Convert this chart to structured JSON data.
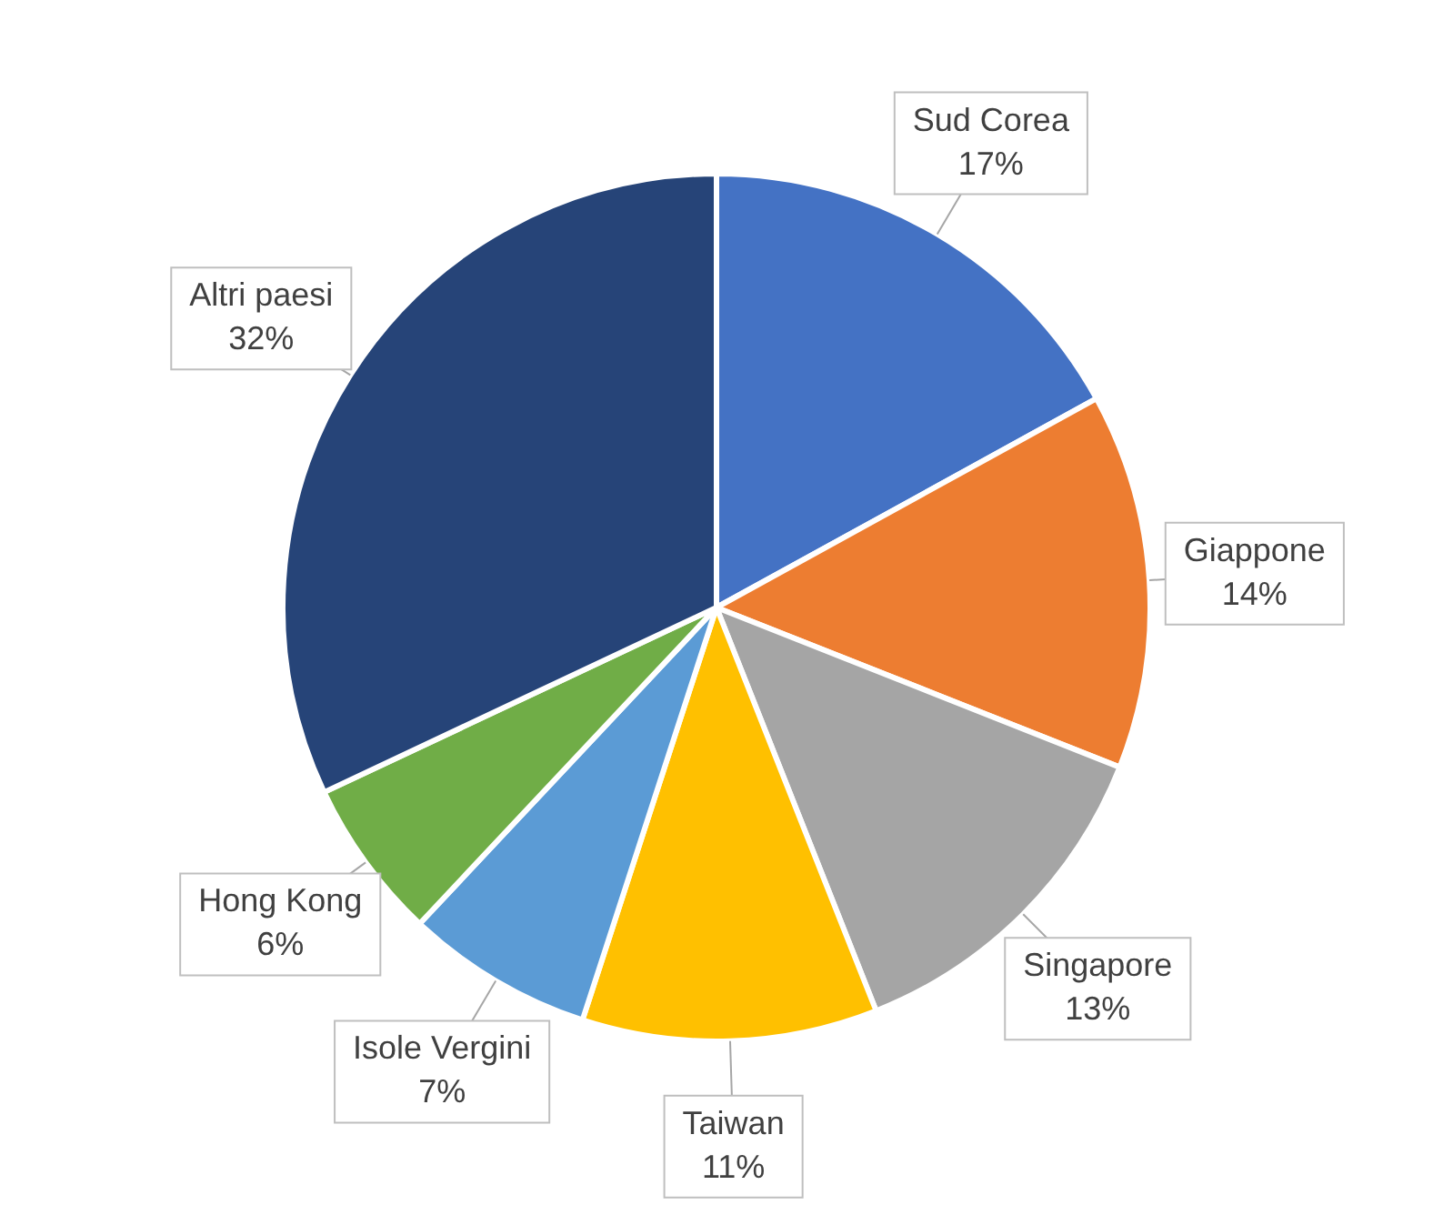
{
  "chart_data": {
    "type": "pie",
    "categories": [
      "Sud Corea",
      "Giappone",
      "Singapore",
      "Taiwan",
      "Isole Vergini",
      "Hong Kong",
      "Altri paesi"
    ],
    "values": [
      17,
      14,
      13,
      11,
      7,
      6,
      32
    ],
    "value_labels": [
      "17%",
      "14%",
      "13%",
      "11%",
      "7%",
      "6%",
      "32%"
    ],
    "colors": [
      "#4472c4",
      "#ed7d31",
      "#a5a5a5",
      "#ffc000",
      "#5b9bd5",
      "#70ad47",
      "#264478"
    ],
    "legend": false
  }
}
